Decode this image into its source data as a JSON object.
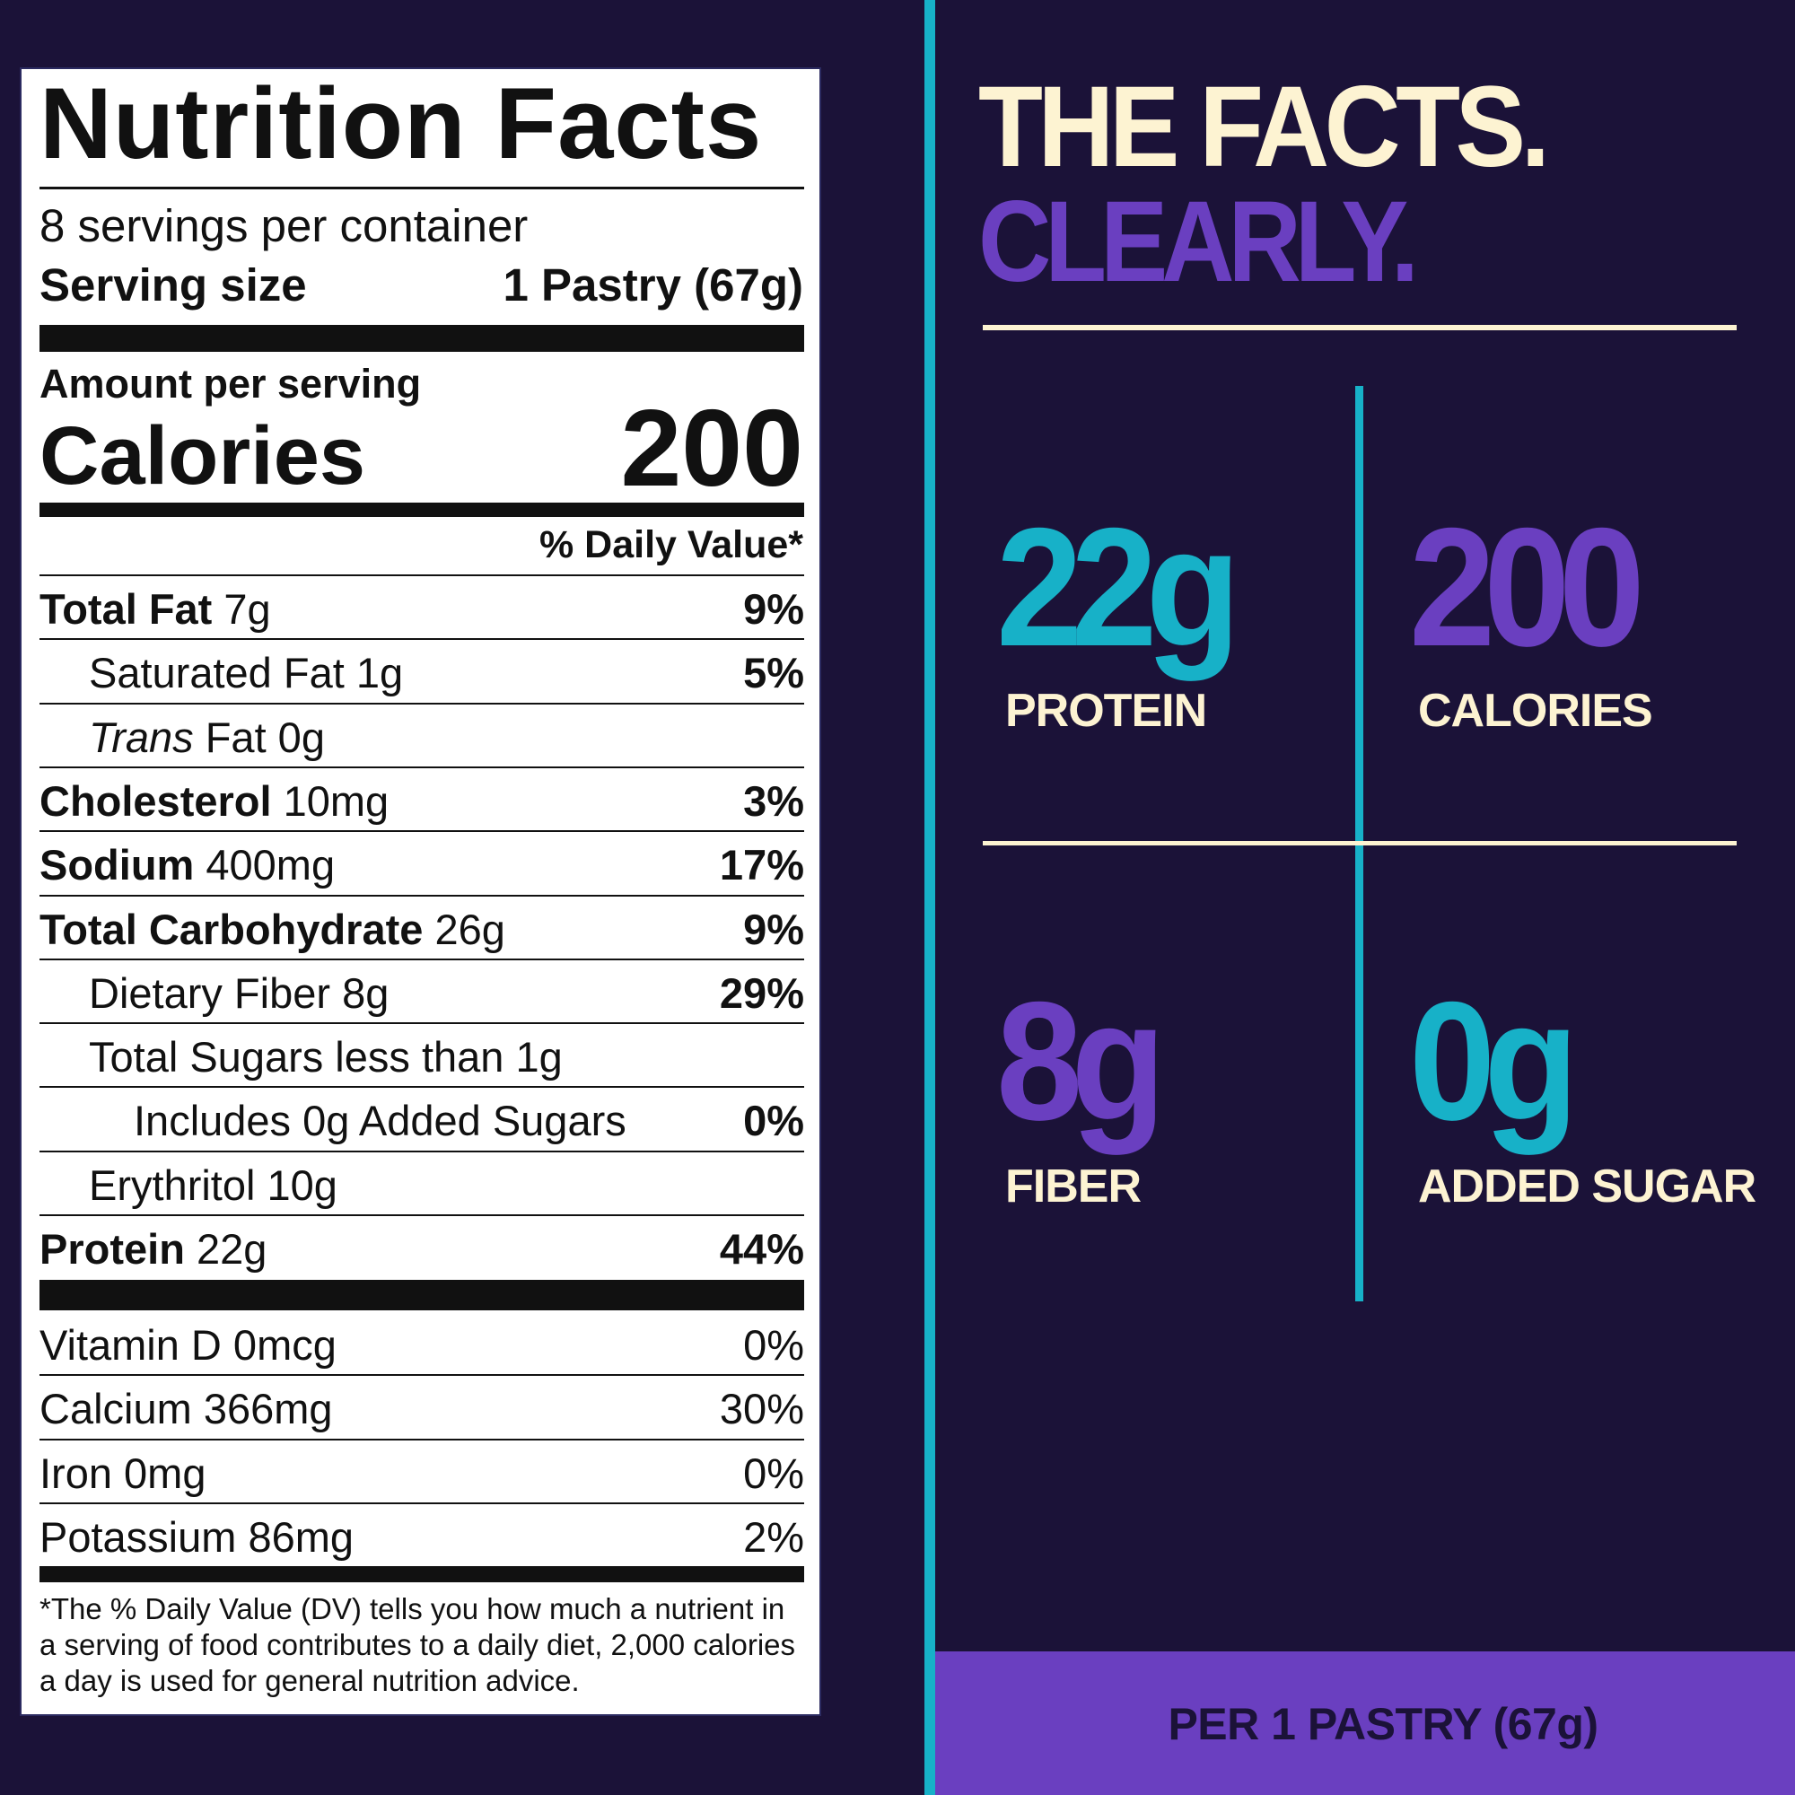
{
  "label": {
    "title": "Nutrition Facts",
    "servings": "8 servings per container",
    "serving_size_label": "Serving size",
    "serving_size_value": "1 Pastry (67g)",
    "amount_per_serving": "Amount per serving",
    "calories_label": "Calories",
    "calories_value": "200",
    "dv_header": "% Daily Value*",
    "nutrients": [
      {
        "bold": "Total Fat",
        "rest": " 7g",
        "pct": "9%"
      },
      {
        "bold": "",
        "rest": "Saturated Fat 1g",
        "pct": "5%"
      },
      {
        "bold": "",
        "italic": "Trans",
        "rest": " Fat 0g",
        "pct": ""
      },
      {
        "bold": "Cholesterol",
        "rest": " 10mg",
        "pct": "3%"
      },
      {
        "bold": "Sodium",
        "rest": " 400mg",
        "pct": "17%"
      },
      {
        "bold": "Total Carbohydrate",
        "rest": " 26g",
        "pct": "9%"
      },
      {
        "bold": "",
        "rest": "Dietary Fiber 8g",
        "pct": "29%"
      },
      {
        "bold": "",
        "rest": "Total Sugars less than 1g",
        "pct": ""
      },
      {
        "bold": "",
        "rest": "Includes 0g Added Sugars",
        "pct": "0%"
      },
      {
        "bold": "",
        "rest": "Erythritol 10g",
        "pct": ""
      },
      {
        "bold": "Protein",
        "rest": " 22g",
        "pct": "44%"
      }
    ],
    "vitamins": [
      {
        "name": "Vitamin D 0mcg",
        "pct": "0%"
      },
      {
        "name": "Calcium 366mg",
        "pct": "30%"
      },
      {
        "name": "Iron 0mg",
        "pct": "0%"
      },
      {
        "name": "Potassium 86mg",
        "pct": "2%"
      }
    ],
    "footnote": "*The % Daily Value (DV) tells you how much a nutrient in a serving of food contributes to a daily diet, 2,000 calories a day is used for general nutrition advice."
  },
  "panel": {
    "headline_1": "THE FACTS.",
    "headline_2": "CLEARLY.",
    "stats": [
      {
        "value": "22g",
        "label": "PROTEIN",
        "color": "#17b1c8"
      },
      {
        "value": "200",
        "label": "CALORIES",
        "color": "#6a3fc0"
      },
      {
        "value": "8g",
        "label": "FIBER",
        "color": "#6a3fc0"
      },
      {
        "value": "0g",
        "label": "ADDED SUGAR",
        "color": "#17b1c8"
      }
    ],
    "footer": "PER 1 PASTRY (67g)"
  },
  "colors": {
    "background": "#1b1238",
    "teal": "#17b1c8",
    "purple": "#6a3fc0",
    "cream": "#fdf3d2"
  }
}
